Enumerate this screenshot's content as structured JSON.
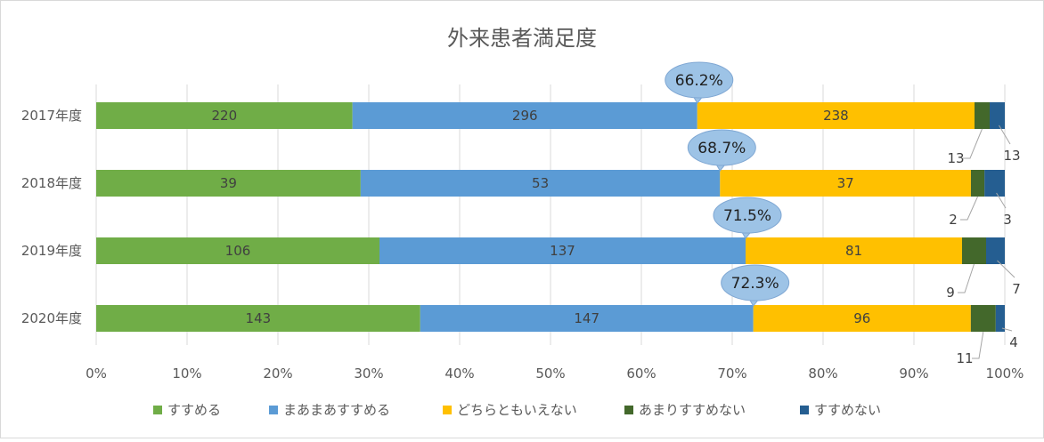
{
  "chart_data": {
    "type": "bar",
    "orientation": "horizontal",
    "stacked": "percent",
    "title": "外来患者満足度",
    "categories": [
      "2017年度",
      "2018年度",
      "2019年度",
      "2020年度"
    ],
    "series": [
      {
        "name": "すすめる",
        "values": [
          220,
          39,
          106,
          143
        ],
        "color": "#70AD47"
      },
      {
        "name": "まあまあすすめる",
        "values": [
          296,
          53,
          137,
          147
        ],
        "color": "#5B9BD5"
      },
      {
        "name": "どちらともいえない",
        "values": [
          238,
          37,
          81,
          96
        ],
        "color": "#FFC000"
      },
      {
        "name": "あまりすすめない",
        "values": [
          13,
          2,
          9,
          11
        ],
        "color": "#43682B"
      },
      {
        "name": "すすめない",
        "values": [
          13,
          3,
          7,
          4
        ],
        "color": "#255E91"
      }
    ],
    "callouts": [
      "66.2%",
      "68.7%",
      "71.5%",
      "72.3%"
    ],
    "x_ticks": [
      "0%",
      "10%",
      "20%",
      "30%",
      "40%",
      "50%",
      "60%",
      "70%",
      "80%",
      "90%",
      "100%"
    ],
    "xlim": [
      0,
      100
    ],
    "grid": true,
    "legend": "bottom",
    "callout_color": "#9DC3E6"
  }
}
